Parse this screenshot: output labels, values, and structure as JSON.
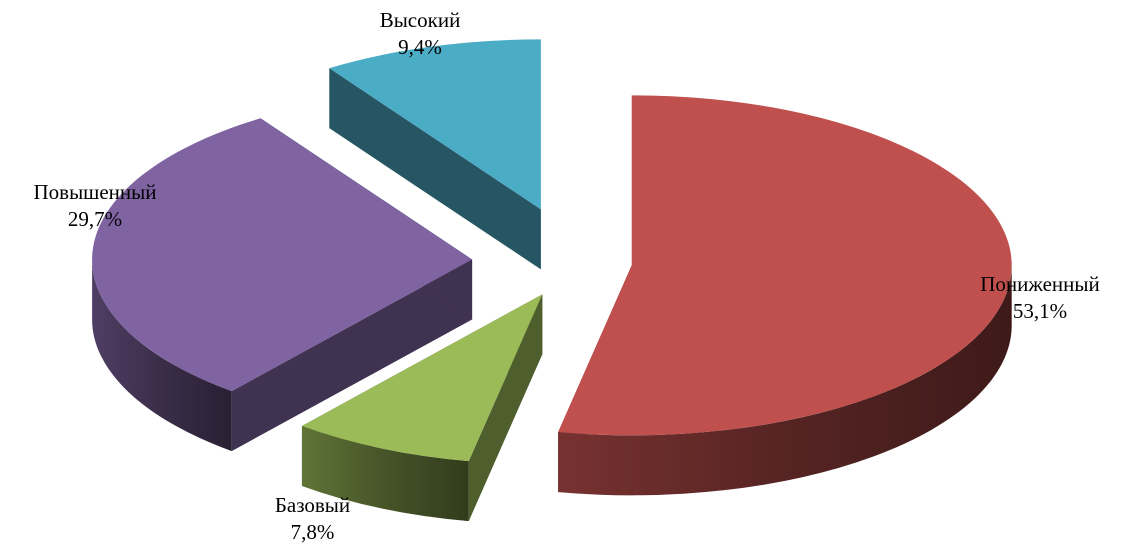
{
  "chart_data": {
    "type": "pie",
    "variant": "3d-exploded",
    "title": "",
    "slices": [
      {
        "name": "Пониженный",
        "value": 53.1,
        "label_value": "53,1%",
        "color": "#c0504d"
      },
      {
        "name": "Базовый",
        "value": 7.8,
        "label_value": "7,8%",
        "color": "#9bbb59"
      },
      {
        "name": "Повышенный",
        "value": 29.7,
        "label_value": "29,7%",
        "color": "#8064a2"
      },
      {
        "name": "Высокий",
        "value": 9.4,
        "label_value": "9,4%",
        "color": "#4bacc6"
      }
    ],
    "legend": "none",
    "data_labels": "outside"
  }
}
